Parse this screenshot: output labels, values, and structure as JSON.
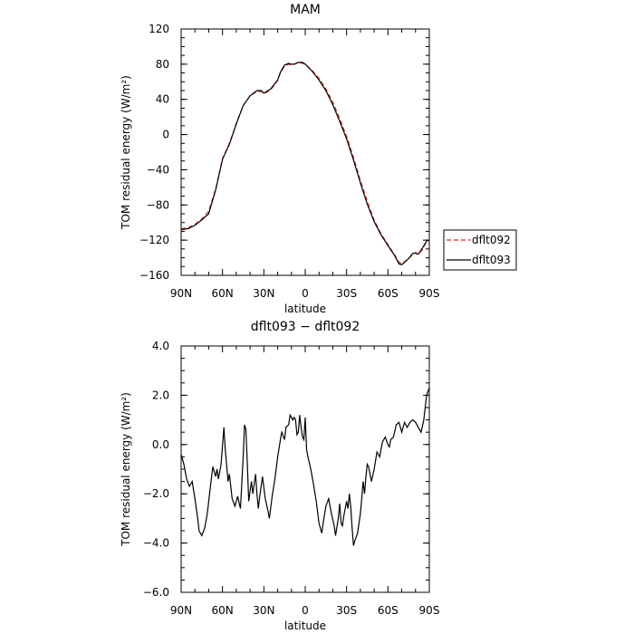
{
  "chart_data": [
    {
      "type": "line",
      "title": "MAM",
      "xlabel": "latitude",
      "ylabel": "TOM residual energy (W/m²)",
      "x_ticks": [
        "90N",
        "60N",
        "30N",
        "0",
        "30S",
        "60S",
        "90S"
      ],
      "x_tick_values": [
        90,
        60,
        30,
        0,
        -30,
        -60,
        -90
      ],
      "xlim": [
        90,
        -90
      ],
      "y_ticks": [
        "120",
        "80",
        "40",
        "0",
        "−40",
        "−80",
        "−120",
        "−160"
      ],
      "y_tick_values": [
        120,
        80,
        40,
        0,
        -40,
        -80,
        -120,
        -160
      ],
      "ylim": [
        -160,
        120
      ],
      "legend_position": "right",
      "series": [
        {
          "name": "dflt092",
          "color": "#e8261c",
          "dash": "dashed",
          "x": [
            90,
            85,
            80,
            75,
            70,
            65,
            60,
            55,
            50,
            45,
            40,
            35,
            32,
            30,
            28,
            25,
            22,
            20,
            18,
            15,
            12,
            10,
            8,
            5,
            2,
            0,
            -5,
            -10,
            -15,
            -20,
            -25,
            -30,
            -35,
            -40,
            -45,
            -50,
            -55,
            -60,
            -65,
            -68,
            -70,
            -75,
            -78,
            -80,
            -82,
            -85,
            -88,
            -90
          ],
          "y": [
            -107,
            -106,
            -102,
            -96,
            -87,
            -62,
            -27,
            -10,
            13,
            33,
            44,
            49,
            49,
            47,
            48,
            51,
            57,
            62,
            70,
            78,
            80,
            79,
            80,
            82,
            81,
            80,
            73,
            64,
            52,
            37,
            18,
            -2,
            -26,
            -52,
            -76,
            -97,
            -113,
            -125,
            -137,
            -145,
            -147,
            -141,
            -136,
            -134,
            -136,
            -131,
            -121,
            -120
          ]
        },
        {
          "name": "dflt093",
          "color": "#000000",
          "dash": "solid",
          "x": [
            90,
            85,
            80,
            75,
            70,
            65,
            60,
            55,
            50,
            45,
            40,
            35,
            32,
            30,
            28,
            25,
            22,
            20,
            18,
            15,
            12,
            10,
            8,
            5,
            2,
            0,
            -5,
            -10,
            -15,
            -20,
            -25,
            -30,
            -35,
            -40,
            -45,
            -50,
            -55,
            -60,
            -65,
            -68,
            -70,
            -75,
            -78,
            -80,
            -82,
            -85,
            -88,
            -90
          ],
          "y": [
            -108,
            -107,
            -103,
            -97,
            -90,
            -63,
            -28,
            -11,
            12,
            33,
            44,
            50,
            50,
            47,
            49,
            52,
            58,
            62,
            71,
            79,
            81,
            80,
            80,
            82,
            82,
            80,
            72,
            62,
            50,
            34,
            15,
            -5,
            -29,
            -55,
            -79,
            -99,
            -114,
            -126,
            -138,
            -147,
            -148,
            -141,
            -135,
            -135,
            -136,
            -129,
            -121,
            -120
          ]
        }
      ]
    },
    {
      "type": "line",
      "title": "dflt093 − dflt092",
      "xlabel": "latitude",
      "ylabel": "TOM residual energy (W/m²)",
      "x_ticks": [
        "90N",
        "60N",
        "30N",
        "0",
        "30S",
        "60S",
        "90S"
      ],
      "x_tick_values": [
        90,
        60,
        30,
        0,
        -30,
        -60,
        -90
      ],
      "xlim": [
        90,
        -90
      ],
      "y_ticks": [
        "4.0",
        "2.0",
        "0.0",
        "−2.0",
        "−4.0",
        "−6.0"
      ],
      "y_tick_values": [
        4,
        2,
        0,
        -2,
        -4,
        -6
      ],
      "ylim": [
        -6,
        4
      ],
      "series": [
        {
          "color": "#000000",
          "x": [
            90,
            88,
            86,
            84,
            82,
            80,
            78,
            77,
            75,
            73,
            71,
            69,
            67,
            65,
            64,
            63,
            61,
            59,
            58,
            56,
            55,
            53,
            51,
            49,
            47,
            45,
            44,
            43,
            42,
            41,
            39,
            38,
            36,
            35,
            34,
            33,
            31,
            29,
            27,
            26,
            24,
            22,
            20,
            18,
            17,
            15,
            14,
            12,
            11,
            9,
            8,
            7,
            6,
            5,
            4,
            3,
            2,
            1,
            0,
            -1,
            -2,
            -4,
            -6,
            -8,
            -10,
            -12,
            -13,
            -15,
            -17,
            -19,
            -21,
            -22,
            -24,
            -25,
            -26,
            -27,
            -28,
            -30,
            -31,
            -32,
            -33,
            -34,
            -35,
            -36,
            -38,
            -40,
            -41,
            -42,
            -43,
            -44,
            -45,
            -46,
            -48,
            -50,
            -52,
            -54,
            -56,
            -58,
            -60,
            -61,
            -62,
            -64,
            -66,
            -68,
            -70,
            -72,
            -74,
            -76,
            -78,
            -80,
            -82,
            -84,
            -86,
            -88,
            -90
          ],
          "y": [
            -0.4,
            -0.8,
            -1.4,
            -1.7,
            -1.5,
            -2.2,
            -3.0,
            -3.5,
            -3.7,
            -3.4,
            -2.8,
            -1.8,
            -0.9,
            -1.3,
            -1.0,
            -1.4,
            -0.8,
            0.7,
            -0.2,
            -1.5,
            -1.2,
            -2.2,
            -2.5,
            -2.1,
            -2.6,
            -0.5,
            0.8,
            0.6,
            -0.8,
            -2.3,
            -1.5,
            -2.0,
            -1.2,
            -2.0,
            -2.6,
            -2.1,
            -1.3,
            -2.2,
            -2.7,
            -3.0,
            -2.1,
            -1.4,
            -0.5,
            0.2,
            0.5,
            0.2,
            0.7,
            0.8,
            1.2,
            1.0,
            1.1,
            1.0,
            0.4,
            0.5,
            1.2,
            0.7,
            0.3,
            0.2,
            1.1,
            -0.2,
            -0.5,
            -1.0,
            -1.6,
            -2.3,
            -3.2,
            -3.6,
            -3.2,
            -2.5,
            -2.2,
            -2.8,
            -3.3,
            -3.7,
            -3.0,
            -2.4,
            -3.2,
            -3.3,
            -2.9,
            -2.3,
            -2.6,
            -2.0,
            -2.5,
            -3.4,
            -4.1,
            -3.9,
            -3.6,
            -2.8,
            -2.2,
            -1.5,
            -2.0,
            -1.3,
            -0.8,
            -0.9,
            -1.5,
            -1.0,
            -0.3,
            -0.5,
            0.1,
            0.3,
            0.0,
            -0.1,
            0.2,
            0.3,
            0.8,
            0.9,
            0.5,
            0.9,
            0.7,
            0.9,
            1.0,
            0.9,
            0.7,
            0.5,
            1.0,
            2.0,
            2.3
          ]
        }
      ]
    }
  ]
}
